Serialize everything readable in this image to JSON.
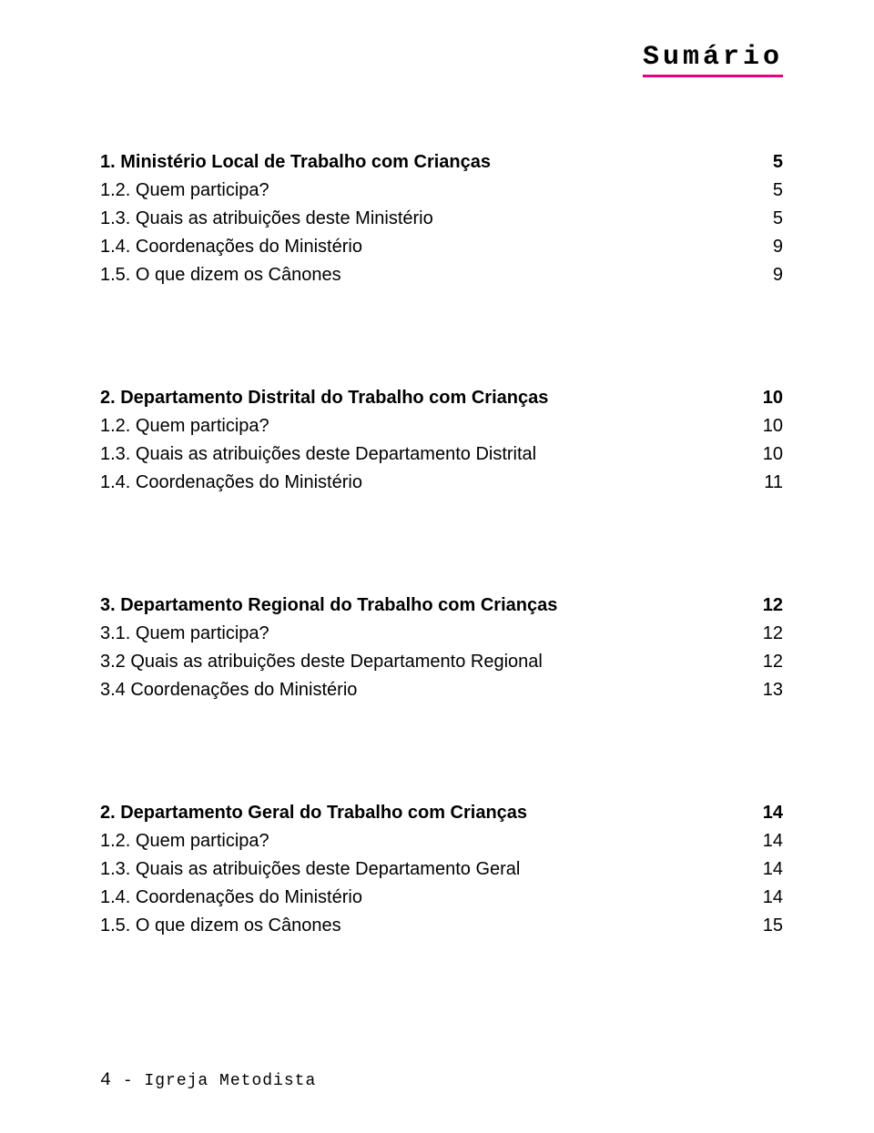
{
  "title": "Sumário",
  "sections": [
    {
      "heading": {
        "label": "1. Ministério Local de Trabalho com Crianças",
        "page": "5"
      },
      "items": [
        {
          "label": "1.2. Quem participa?",
          "page": "5"
        },
        {
          "label": "1.3. Quais as atribuições deste Ministério",
          "page": "5"
        },
        {
          "label": "1.4. Coordenações do Ministério",
          "page": "9"
        },
        {
          "label": "1.5. O que dizem os Cânones",
          "page": "9"
        }
      ]
    },
    {
      "heading": {
        "label": "2. Departamento Distrital do Trabalho com Crianças",
        "page": "10"
      },
      "items": [
        {
          "label": "1.2. Quem participa?",
          "page": "10"
        },
        {
          "label": "1.3. Quais as atribuições deste Departamento Distrital",
          "page": "10"
        },
        {
          "label": "1.4. Coordenações do Ministério",
          "page": "11"
        }
      ]
    },
    {
      "heading": {
        "label": "3. Departamento Regional do Trabalho com Crianças",
        "page": "12"
      },
      "items": [
        {
          "label": "3.1. Quem participa?",
          "page": "12"
        },
        {
          "label": "3.2 Quais as atribuições deste Departamento Regional",
          "page": "12"
        },
        {
          "label": "3.4 Coordenações do Ministério",
          "page": "13"
        }
      ]
    },
    {
      "heading": {
        "label": "2. Departamento Geral do Trabalho com Crianças",
        "page": "14"
      },
      "items": [
        {
          "label": "1.2. Quem participa?",
          "page": "14"
        },
        {
          "label": "1.3. Quais as atribuições deste Departamento Geral",
          "page": "14"
        },
        {
          "label": "1.4. Coordenações do Ministério",
          "page": "14"
        },
        {
          "label": "1.5. O que dizem os Cânones",
          "page": "15"
        }
      ]
    }
  ],
  "footer": {
    "page_number": "4",
    "separator": " - ",
    "text": "Igreja Metodista"
  }
}
